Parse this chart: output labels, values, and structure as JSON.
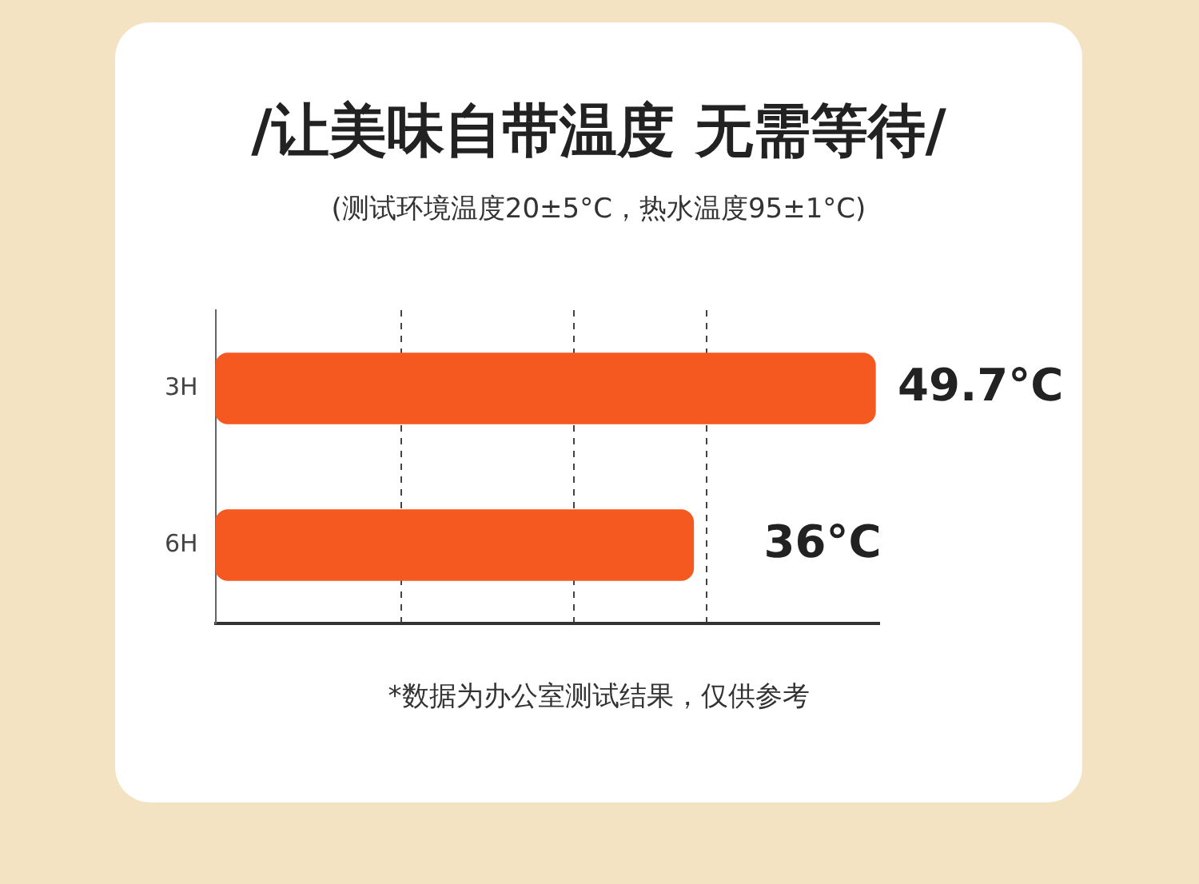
{
  "chart_data": {
    "type": "bar",
    "orientation": "horizontal",
    "title": "/让美味自带温度 无需等待/",
    "subtitle": "(测试环境温度20±5°C，热水温度95±1°C)",
    "annotations": [
      "*数据为办公室测试结果，仅供参考"
    ],
    "categories": [
      "3H",
      "6H"
    ],
    "series": [
      {
        "color": "#f5591f",
        "values": [
          49.7,
          36
        ],
        "value_labels": [
          "49.7°C",
          "36°C"
        ]
      }
    ],
    "xlim": [
      0,
      50
    ],
    "xticks": [
      {
        "value": 14,
        "label": null
      },
      {
        "value": 27,
        "label": null
      },
      {
        "value": 37,
        "label": null
      }
    ],
    "grid": "x",
    "tick_labels": "y",
    "legend": false
  }
}
